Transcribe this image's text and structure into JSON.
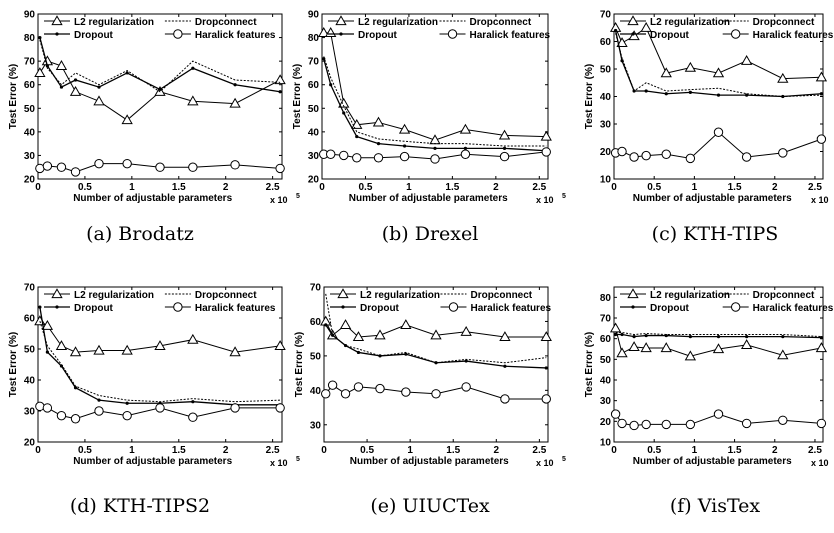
{
  "figure": {
    "legend_labels": {
      "l2": "L2 regularization",
      "dropout": "Dropout",
      "dropconnect": "Dropconnect",
      "haralick": "Haralick features"
    },
    "ylabel": "Test Error (%)",
    "xlabel": "Number of adjustable parameters",
    "x_multiplier": "x 10",
    "x_multiplier_exp": "5"
  },
  "chart_data": [
    {
      "type": "line",
      "caption": "(a) Brodatz",
      "x": [
        0.02,
        0.1,
        0.25,
        0.4,
        0.65,
        0.95,
        1.3,
        1.65,
        2.1,
        2.58
      ],
      "xlim": [
        0,
        2.6
      ],
      "xticks": [
        "0",
        "0.5",
        "1",
        "1.5",
        "2",
        "2.5"
      ],
      "ylim": [
        20,
        90
      ],
      "yticks": [
        "20",
        "30",
        "40",
        "50",
        "60",
        "70",
        "80",
        "90"
      ],
      "series": [
        {
          "name": "L2 regularization",
          "values": [
            65,
            70,
            68,
            57,
            53,
            45,
            57,
            53,
            52,
            62
          ]
        },
        {
          "name": "Dropout",
          "values": [
            80,
            68,
            59,
            62,
            59,
            65,
            58,
            67,
            60,
            57
          ]
        },
        {
          "name": "Dropconnect",
          "values": [
            79,
            67,
            60,
            65,
            60,
            66,
            57,
            70,
            62,
            61
          ]
        },
        {
          "name": "Haralick features",
          "values": [
            24.5,
            25.5,
            25,
            23,
            26.5,
            26.5,
            25,
            25,
            26,
            24.5
          ]
        }
      ]
    },
    {
      "type": "line",
      "caption": "(b) Drexel",
      "x": [
        0.02,
        0.1,
        0.25,
        0.4,
        0.65,
        0.95,
        1.3,
        1.65,
        2.1,
        2.58
      ],
      "xlim": [
        0,
        2.6
      ],
      "xticks": [
        "0",
        "0.5",
        "1",
        "1.5",
        "2",
        "2.5"
      ],
      "ylim": [
        20,
        90
      ],
      "yticks": [
        "20",
        "30",
        "40",
        "50",
        "60",
        "70",
        "80",
        "90"
      ],
      "series": [
        {
          "name": "L2 regularization",
          "values": [
            82,
            82,
            52,
            43,
            44,
            41,
            36.5,
            41,
            38.5,
            38
          ]
        },
        {
          "name": "Dropout",
          "values": [
            71,
            60,
            48,
            38,
            35,
            34,
            33,
            33,
            33,
            32
          ]
        },
        {
          "name": "Dropconnect",
          "values": [
            72,
            63,
            51,
            40,
            37,
            36,
            35,
            35,
            34,
            34
          ]
        },
        {
          "name": "Haralick features",
          "values": [
            30.5,
            30.5,
            30,
            29,
            29,
            29.5,
            28.5,
            30.5,
            29.5,
            31.5
          ]
        }
      ]
    },
    {
      "type": "line",
      "caption": "(c) KTH-TIPS",
      "x": [
        0.02,
        0.1,
        0.25,
        0.4,
        0.65,
        0.95,
        1.3,
        1.65,
        2.1,
        2.58
      ],
      "xlim": [
        0,
        2.6
      ],
      "xticks": [
        "0",
        "0.5",
        "1",
        "1.5",
        "2",
        "2.5"
      ],
      "ylim": [
        10,
        70
      ],
      "yticks": [
        "10",
        "20",
        "30",
        "40",
        "50",
        "60",
        "70"
      ],
      "series": [
        {
          "name": "L2 regularization",
          "values": [
            65,
            59.5,
            62,
            65,
            48.5,
            50.5,
            48.5,
            53,
            46.5,
            47
          ]
        },
        {
          "name": "Dropout",
          "values": [
            64,
            53,
            42,
            42,
            41,
            41.5,
            40.5,
            40.5,
            40,
            41
          ]
        },
        {
          "name": "Dropconnect",
          "values": [
            63,
            54,
            42,
            45,
            42,
            42.5,
            43,
            41,
            40,
            40.5
          ]
        },
        {
          "name": "Haralick features",
          "values": [
            19.5,
            20,
            18,
            18.5,
            19,
            17.5,
            27,
            18,
            19.5,
            24.5
          ]
        }
      ]
    },
    {
      "type": "line",
      "caption": "(d) KTH-TIPS2",
      "x": [
        0.02,
        0.1,
        0.25,
        0.4,
        0.65,
        0.95,
        1.3,
        1.65,
        2.1,
        2.58
      ],
      "xlim": [
        0,
        2.6
      ],
      "xticks": [
        "0",
        "0.5",
        "1",
        "1.5",
        "2",
        "2.5"
      ],
      "ylim": [
        20,
        70
      ],
      "yticks": [
        "20",
        "30",
        "40",
        "50",
        "60",
        "70"
      ],
      "series": [
        {
          "name": "L2 regularization",
          "values": [
            59,
            57.5,
            51,
            49,
            49.5,
            49.5,
            51,
            53,
            49,
            51
          ]
        },
        {
          "name": "Dropout",
          "values": [
            63.5,
            49,
            44.5,
            37.5,
            33.5,
            32.5,
            32.5,
            33,
            32,
            32
          ]
        },
        {
          "name": "Dropconnect",
          "values": [
            59,
            51,
            45,
            38,
            35,
            33.5,
            33,
            34,
            33,
            33.5
          ]
        },
        {
          "name": "Haralick features",
          "values": [
            31.5,
            31,
            28.5,
            27.5,
            30,
            28.5,
            31,
            28,
            31,
            31
          ]
        }
      ]
    },
    {
      "type": "line",
      "caption": "(e) UIUCTex",
      "x": [
        0.02,
        0.1,
        0.25,
        0.4,
        0.65,
        0.95,
        1.3,
        1.65,
        2.1,
        2.58
      ],
      "xlim": [
        0,
        2.6
      ],
      "xticks": [
        "0",
        "0.5",
        "1",
        "1.5",
        "2",
        "2.5"
      ],
      "ylim": [
        25,
        70
      ],
      "yticks": [
        "30",
        "40",
        "50",
        "60",
        "70"
      ],
      "series": [
        {
          "name": "L2 regularization",
          "values": [
            60,
            56,
            59,
            55.5,
            56,
            59,
            56,
            57,
            55.5,
            55.5
          ]
        },
        {
          "name": "Dropout",
          "values": [
            59,
            56,
            53,
            51,
            50,
            50.5,
            48,
            48.5,
            47,
            46.5
          ]
        },
        {
          "name": "Dropconnect",
          "values": [
            68,
            56,
            53,
            52,
            50,
            51,
            48,
            49,
            48,
            49.5
          ]
        },
        {
          "name": "Haralick features",
          "values": [
            39,
            41.5,
            39,
            41,
            40.5,
            39.5,
            39,
            41,
            37.5,
            37.5
          ]
        }
      ]
    },
    {
      "type": "line",
      "caption": "(f) VisTex",
      "x": [
        0.02,
        0.1,
        0.25,
        0.4,
        0.65,
        0.95,
        1.3,
        1.65,
        2.1,
        2.58
      ],
      "xlim": [
        0,
        2.6
      ],
      "xticks": [
        "0",
        "0.5",
        "1",
        "1.5",
        "2",
        "2.5"
      ],
      "ylim": [
        10,
        85
      ],
      "yticks": [
        "10",
        "20",
        "30",
        "40",
        "50",
        "60",
        "70",
        "80"
      ],
      "series": [
        {
          "name": "L2 regularization",
          "values": [
            65,
            53,
            56,
            55.5,
            55.5,
            51.5,
            55,
            57,
            52,
            55.5
          ]
        },
        {
          "name": "Dropout",
          "values": [
            62,
            62,
            61,
            61.5,
            61.5,
            61,
            61,
            61,
            61,
            60.5
          ]
        },
        {
          "name": "Dropconnect",
          "values": [
            63,
            63,
            62,
            62.5,
            62,
            62,
            62,
            62,
            62,
            61
          ]
        },
        {
          "name": "Haralick features",
          "values": [
            23.5,
            19,
            18,
            18.5,
            18.5,
            18.5,
            23.5,
            19,
            20.5,
            19
          ]
        }
      ]
    }
  ]
}
